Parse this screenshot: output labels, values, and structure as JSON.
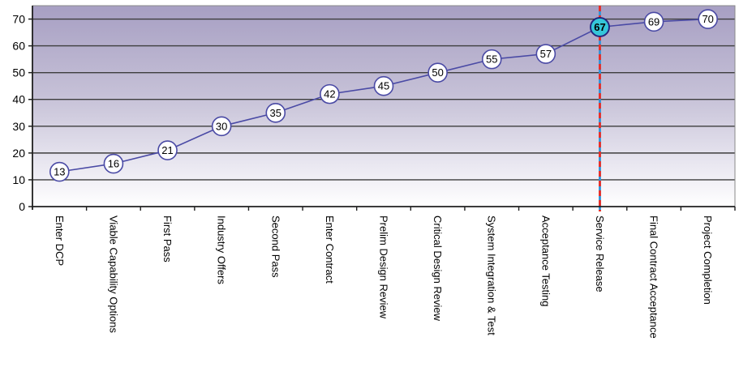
{
  "chart_data": {
    "type": "line",
    "categories": [
      "Enter DCP",
      "Viable Capability Options",
      "First Pass",
      "Industry Offers",
      "Second Pass",
      "Enter Contract",
      "Prelim Design Review",
      "Critical Design Review",
      "System Integration & Test",
      "Acceptance Testing",
      "Service Release",
      "Final Contract Acceptance",
      "Project Completion"
    ],
    "values": [
      13,
      16,
      21,
      30,
      35,
      42,
      45,
      50,
      55,
      57,
      67,
      69,
      70
    ],
    "data_labels_shown": true,
    "title": "",
    "xlabel": "",
    "ylabel": "",
    "ylim": [
      0,
      75
    ],
    "yticks": [
      0,
      10,
      20,
      30,
      40,
      50,
      60,
      70
    ],
    "grid": "horizontal-major",
    "legend": "none",
    "highlight": {
      "category": "Service Release",
      "index": 10,
      "value": 67,
      "marker_fill": "#35c6d9",
      "marker_border": "#24247e"
    },
    "vline": {
      "at_category": "Service Release",
      "index": 10,
      "style": "dashed-over-solid",
      "dash_color": "#ee2b22",
      "base_color": "#2f93d8"
    },
    "colors": {
      "series_line": "#4a4aa5",
      "marker_fill": "#ffffff",
      "marker_border": "#4a4aa5",
      "marker_text": "#000000",
      "gridline": "#3d3d3d",
      "axis": "#1f1f1f",
      "plot_border": "#8a8a8a",
      "plot_bg_top": "#a79fc3",
      "plot_bg_mid": "#c6c1d7",
      "plot_bg_low": "#e8e6f0",
      "plot_bg_bottom": "#ffffff",
      "tick_label_text": "#000000",
      "category_label_text": "#000000"
    }
  }
}
